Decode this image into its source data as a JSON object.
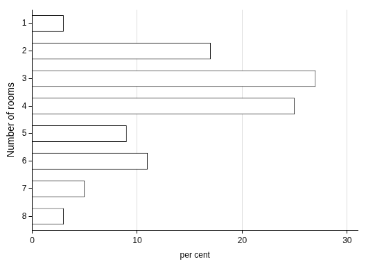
{
  "chart_data": {
    "type": "bar",
    "orientation": "horizontal",
    "x_label": "per cent",
    "y_label": "Number of rooms",
    "categories": [
      "1",
      "2",
      "3",
      "4",
      "5",
      "6",
      "7",
      "8"
    ],
    "values": [
      3,
      17,
      27,
      25,
      9,
      11,
      5,
      3
    ],
    "color": "#ffffff",
    "xlim": [
      0,
      31
    ],
    "xticks": [
      0,
      10,
      20,
      30
    ],
    "grid": true
  }
}
